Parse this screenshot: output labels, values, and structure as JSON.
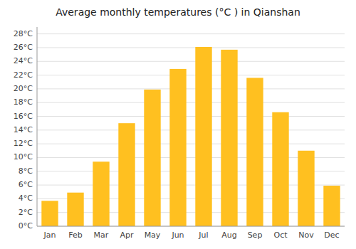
{
  "chart_data": {
    "type": "bar",
    "title": "Average monthly temperatures (°C ) in Qianshan",
    "categories": [
      "Jan",
      "Feb",
      "Mar",
      "Apr",
      "May",
      "Jun",
      "Jul",
      "Aug",
      "Sep",
      "Oct",
      "Nov",
      "Dec"
    ],
    "values": [
      3.7,
      4.9,
      9.4,
      15.0,
      19.9,
      22.9,
      26.1,
      25.7,
      21.6,
      16.6,
      11.0,
      5.9
    ],
    "color": "#FFC020",
    "ylim": [
      0,
      29
    ],
    "yticks": [
      {
        "value": 0,
        "label": "0°C"
      },
      {
        "value": 2,
        "label": "2°C"
      },
      {
        "value": 4,
        "label": "4°C"
      },
      {
        "value": 6,
        "label": "6°C"
      },
      {
        "value": 8,
        "label": "8°C"
      },
      {
        "value": 10,
        "label": "10°C"
      },
      {
        "value": 12,
        "label": "12°C"
      },
      {
        "value": 14,
        "label": "14°C"
      },
      {
        "value": 16,
        "label": "16°C"
      },
      {
        "value": 18,
        "label": "18°C"
      },
      {
        "value": 20,
        "label": "20°C"
      },
      {
        "value": 22,
        "label": "22°C"
      },
      {
        "value": 24,
        "label": "24°C"
      },
      {
        "value": 26,
        "label": "26°C"
      },
      {
        "value": 28,
        "label": "28°C"
      }
    ],
    "grid": true
  }
}
